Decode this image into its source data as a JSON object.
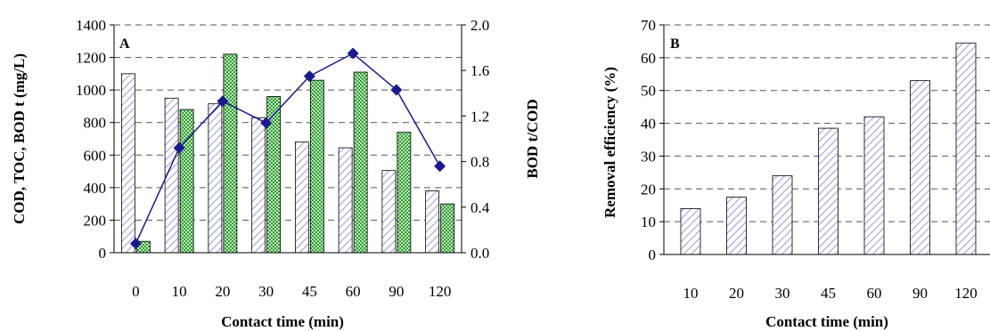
{
  "chart_data": [
    {
      "type": "bar",
      "panel_label": "A",
      "categories": [
        "0",
        "10",
        "20",
        "30",
        "45",
        "60",
        "90",
        "120"
      ],
      "series": [
        {
          "values": [
            1100,
            950,
            915,
            830,
            680,
            645,
            505,
            380
          ]
        },
        {
          "values": [
            70,
            880,
            1220,
            960,
            1060,
            1110,
            740,
            300
          ]
        }
      ],
      "line_series": {
        "axis": "right",
        "values": [
          0.08,
          0.92,
          1.33,
          1.14,
          1.55,
          1.75,
          1.43,
          0.76
        ]
      },
      "xlabel": "Contact time (min)",
      "ylabel": "COD, TOC, BOD t (mg/L)",
      "ylabel2": "BOD t/COD",
      "ylim": [
        0,
        1400
      ],
      "yticks": [
        "0",
        "200",
        "400",
        "600",
        "800",
        "1000",
        "1200",
        "1400"
      ],
      "ylim2": [
        0,
        2.0
      ],
      "yticks2": [
        "0.0",
        "0.4",
        "0.8",
        "1.2",
        "1.6",
        "2.0"
      ],
      "grid": true,
      "colors": {
        "hatch": "#9999dd",
        "green": "#2f9e2f",
        "line": "#1a1a8c"
      }
    },
    {
      "type": "bar",
      "panel_label": "B",
      "categories": [
        "10",
        "20",
        "30",
        "45",
        "60",
        "90",
        "120"
      ],
      "series": [
        {
          "values": [
            14,
            17.5,
            24,
            38.5,
            42,
            53,
            64.5
          ]
        }
      ],
      "xlabel": "Contact time (min)",
      "ylabel": "Removal efficiency   (%)",
      "ylim": [
        0,
        70
      ],
      "yticks": [
        "0",
        "10",
        "20",
        "30",
        "40",
        "50",
        "60",
        "70"
      ],
      "grid": true,
      "colors": {
        "hatch": "#9999dd"
      }
    }
  ]
}
